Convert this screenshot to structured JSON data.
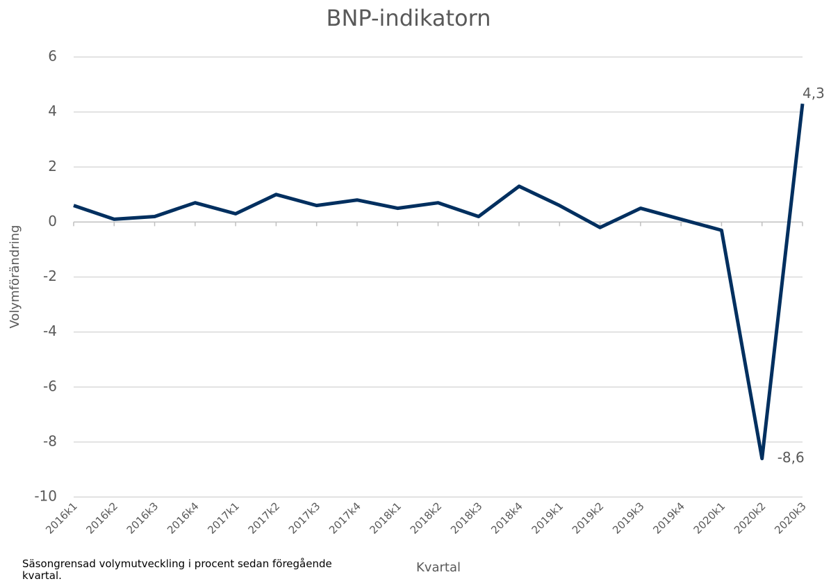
{
  "chart_data": {
    "type": "line",
    "title": "BNP-indikatorn",
    "y_label": "Volymförändring",
    "x_label": "Kvartal",
    "note": "Säsongrensad volymutveckling i procent sedan föregående kvartal.",
    "categories": [
      "2016k1",
      "2016k2",
      "2016k3",
      "2016k4",
      "2017k1",
      "2017k2",
      "2017k3",
      "2017k4",
      "2018k1",
      "2018k2",
      "2018k3",
      "2018k4",
      "2019k1",
      "2019k2",
      "2019k3",
      "2019k4",
      "2020k1",
      "2020k2",
      "2020k3"
    ],
    "series": [
      {
        "name": "BNP-indikatorn",
        "color": "#002f5f",
        "values": [
          0.6,
          0.1,
          0.2,
          0.7,
          0.3,
          1.0,
          0.6,
          0.8,
          0.5,
          0.7,
          0.2,
          1.3,
          0.6,
          -0.2,
          0.5,
          0.1,
          -0.3,
          -8.6,
          4.3
        ],
        "value_labels": [
          null,
          null,
          null,
          null,
          null,
          null,
          null,
          null,
          null,
          null,
          null,
          null,
          null,
          null,
          null,
          null,
          null,
          "-8,6",
          "4,3"
        ]
      }
    ],
    "ylim": [
      -10,
      6
    ],
    "yticks": [
      -10,
      -8,
      -6,
      -4,
      -2,
      0,
      2,
      4,
      6
    ],
    "grid": true
  }
}
